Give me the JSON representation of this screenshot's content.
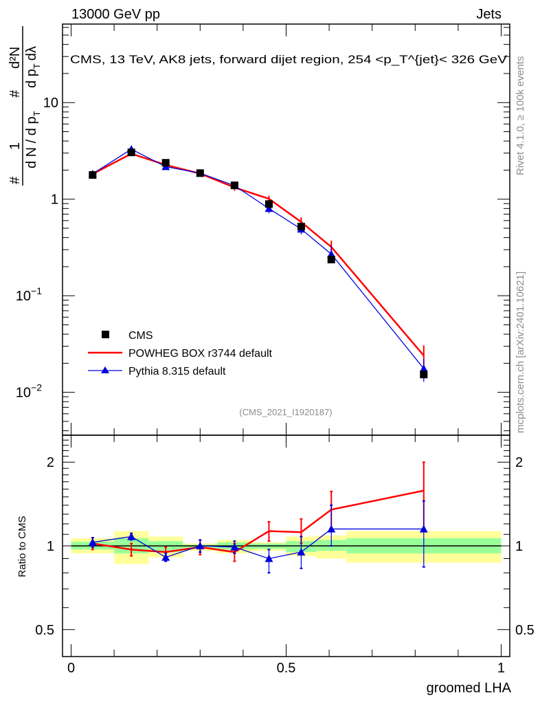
{
  "header": {
    "left": "13000 GeV pp",
    "right": "Jets"
  },
  "side_text": {
    "top": "Rivet 4.1.0, ≥ 100k events",
    "bottom": "mcplots.cern.ch [arXiv:2401.10621]"
  },
  "watermark": "(CMS_2021_I1920187)",
  "colors": {
    "cms": "#000000",
    "powheg": "#ff0000",
    "pythia": "#0000dd",
    "band_inner": "#99ff99",
    "band_outer": "#ffff99"
  },
  "chart_data": [
    {
      "type": "line",
      "panel": "main",
      "title": "CMS, 13 TeV, AK8 jets, forward dijet region, 254 <p_T^{jet}< 326 GeV",
      "title_parts": {
        "pre": "CMS, 13 TeV, AK8 jets, forward dijet region, 254 <p",
        "sup": "{jet}",
        "sub": "T",
        "post": "}< 326 GeV"
      },
      "ylabel_parts": {
        "num_a": "1",
        "den_a": "d N / d p",
        "num_b": "d²N",
        "den_b": "d p",
        "den_b2": "dλ",
        "hash": "#",
        "sub": "T"
      },
      "yscale": "log",
      "ylim": [
        0.0036,
        65
      ],
      "xlim": [
        -0.02,
        1.02
      ],
      "ytick_values": [
        0.01,
        0.1,
        1,
        10
      ],
      "ytick_labels": [
        {
          "base": "10",
          "exp": "−2"
        },
        {
          "base": "10",
          "exp": "−1"
        },
        {
          "base": "1",
          "exp": ""
        },
        {
          "base": "10",
          "exp": ""
        }
      ],
      "legend": {
        "placement": "center-left",
        "entries": [
          "CMS",
          "POWHEG BOX r3744 default",
          "Pythia 8.315 default"
        ]
      },
      "x": [
        0.05,
        0.14,
        0.22,
        0.3,
        0.38,
        0.46,
        0.535,
        0.605,
        0.82
      ],
      "series": [
        {
          "name": "CMS",
          "values": [
            1.78,
            3.05,
            2.38,
            1.86,
            1.39,
            0.89,
            0.52,
            0.237,
            0.0153
          ]
        },
        {
          "name": "POWHEG BOX r3744 default",
          "values": [
            1.82,
            2.96,
            2.26,
            1.84,
            1.32,
            1.01,
            0.58,
            0.32,
            0.024
          ]
        },
        {
          "name": "Pythia 8.315 default",
          "values": [
            1.83,
            3.29,
            2.17,
            1.86,
            1.38,
            0.8,
            0.49,
            0.27,
            0.0176
          ]
        }
      ]
    },
    {
      "type": "line",
      "panel": "ratio",
      "ylabel": "Ratio to CMS",
      "xlabel": "groomed LHA",
      "yscale": "log2",
      "ylim": [
        0.4,
        2.5
      ],
      "xlim": [
        -0.02,
        1.02
      ],
      "ytick_values": [
        0.5,
        1,
        2
      ],
      "ytick_labels": [
        "0.5",
        "1",
        "2"
      ],
      "xtick_values": [
        0,
        0.5,
        1
      ],
      "xtick_labels": [
        "0",
        "0.5",
        "1"
      ],
      "bin_edges": [
        0,
        0.1,
        0.18,
        0.26,
        0.34,
        0.42,
        0.5,
        0.57,
        0.64,
        1.0
      ],
      "band_inner": [
        [
          0.97,
          1.035
        ],
        [
          0.94,
          1.065
        ],
        [
          0.95,
          1.04
        ],
        [
          0.98,
          1.01
        ],
        [
          0.97,
          1.03
        ],
        [
          0.975,
          1.02
        ],
        [
          0.95,
          1.04
        ],
        [
          0.96,
          1.05
        ],
        [
          0.94,
          1.065
        ]
      ],
      "band_outer": [
        [
          0.94,
          1.065
        ],
        [
          0.86,
          1.13
        ],
        [
          0.91,
          1.08
        ],
        [
          0.96,
          1.02
        ],
        [
          0.94,
          1.05
        ],
        [
          0.96,
          1.03
        ],
        [
          0.92,
          1.08
        ],
        [
          0.9,
          1.09
        ],
        [
          0.87,
          1.13
        ]
      ],
      "x": [
        0.05,
        0.14,
        0.22,
        0.3,
        0.38,
        0.46,
        0.535,
        0.605,
        0.82
      ],
      "series": [
        {
          "name": "POWHEG BOX r3744 default",
          "values": [
            1.02,
            0.97,
            0.95,
            0.99,
            0.95,
            1.13,
            1.12,
            1.35,
            1.58
          ],
          "err": [
            [
              0.97,
              1.07
            ],
            [
              0.92,
              1.02
            ],
            [
              0.91,
              0.99
            ],
            [
              0.93,
              1.05
            ],
            [
              0.88,
              1.02
            ],
            [
              1.04,
              1.22
            ],
            [
              1.02,
              1.25
            ],
            [
              1.15,
              1.57
            ],
            [
              1.15,
              2.0
            ]
          ]
        },
        {
          "name": "Pythia 8.315 default",
          "values": [
            1.03,
            1.08,
            0.91,
            1.0,
            0.99,
            0.9,
            0.95,
            1.15,
            1.15
          ],
          "err": [
            [
              0.99,
              1.07
            ],
            [
              1.05,
              1.11
            ],
            [
              0.88,
              0.94
            ],
            [
              0.95,
              1.05
            ],
            [
              0.94,
              1.04
            ],
            [
              0.8,
              0.97
            ],
            [
              0.83,
              1.08
            ],
            [
              1.0,
              1.4
            ],
            [
              0.84,
              1.45
            ]
          ]
        }
      ]
    }
  ]
}
